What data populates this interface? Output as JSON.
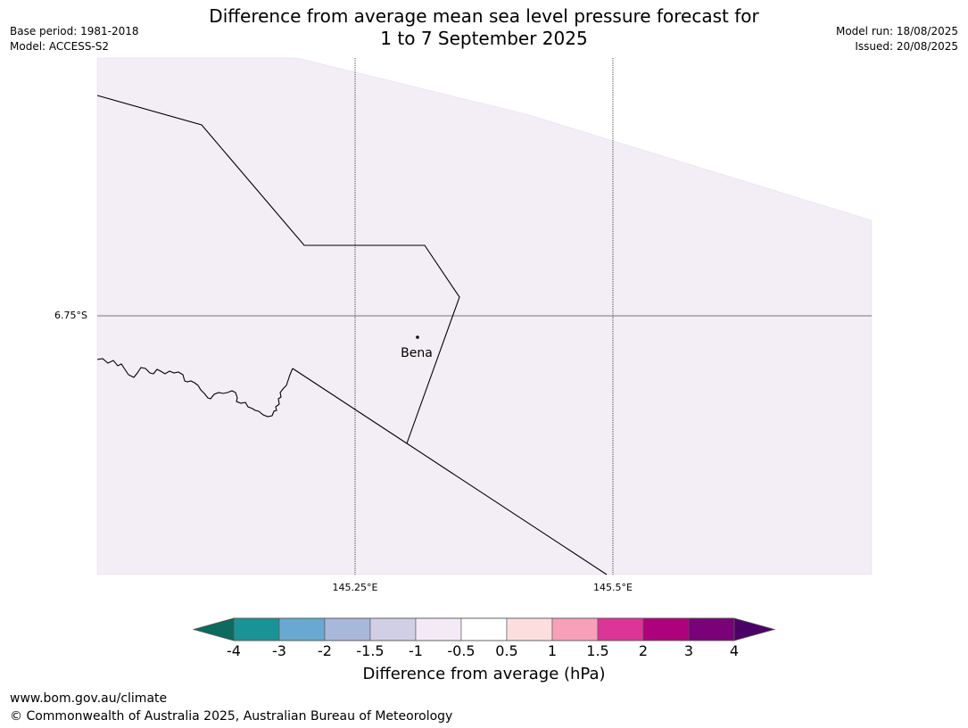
{
  "title_line1": "Difference from average mean sea level pressure forecast for",
  "title_line2": "1 to 7 September 2025",
  "base_period": "Base period: 1981-2018",
  "model": "Model: ACCESS-S2",
  "model_run": "Model run: 18/08/2025",
  "issued": "Issued: 20/08/2025",
  "map": {
    "lat_labels": [
      "6.75°S"
    ],
    "lon_labels": [
      "145.25°E",
      "145.5°E"
    ],
    "places": [
      {
        "name": "Bena"
      }
    ]
  },
  "colorbar": {
    "label": "Difference from average (hPa)",
    "ticks": [
      "-4",
      "-3",
      "-2",
      "-1.5",
      "-1",
      "-0.5",
      "0.5",
      "1",
      "1.5",
      "2",
      "3",
      "4"
    ],
    "under_color": "#0a6b5e",
    "over_color": "#4b0068",
    "colors": [
      "#1a9396",
      "#69a8d0",
      "#a8b8da",
      "#d0cfe6",
      "#f3eaf6",
      "#ffffff",
      "#fddede",
      "#f8a0b9",
      "#dd3497",
      "#ae017e",
      "#7a0177"
    ]
  },
  "footer_url": "www.bom.gov.au/climate",
  "footer_copyright": "© Commonwealth of Australia 2025, Australian Bureau of Meteorology"
}
